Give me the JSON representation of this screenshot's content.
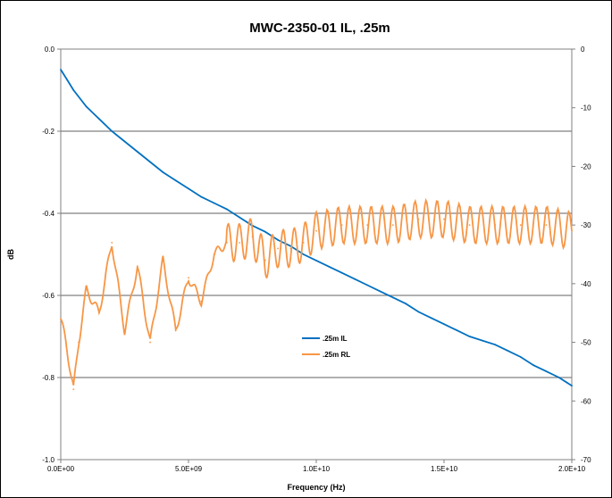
{
  "chart_data": {
    "type": "line",
    "title": "MWC-2350-01 IL, .25m",
    "xlabel": "Frequency (Hz)",
    "ylabel": "dB",
    "y2label": "",
    "xlim": [
      0,
      20000000000
    ],
    "ylim": [
      -1.0,
      0.0
    ],
    "y2lim": [
      -70,
      0
    ],
    "x_ticks": [
      {
        "value": 0,
        "label": "0.0E+00"
      },
      {
        "value": 5000000000,
        "label": "5.0E+09"
      },
      {
        "value": 10000000000,
        "label": "1.0E+10"
      },
      {
        "value": 15000000000,
        "label": "1.5E+10"
      },
      {
        "value": 20000000000,
        "label": "2.0E+10"
      }
    ],
    "y_ticks": [
      {
        "value": 0.0,
        "label": "0.0"
      },
      {
        "value": -0.2,
        "label": "-0.2"
      },
      {
        "value": -0.4,
        "label": "-0.4"
      },
      {
        "value": -0.6,
        "label": "-0.6"
      },
      {
        "value": -0.8,
        "label": "-0.8"
      },
      {
        "value": -1.0,
        "label": "-1.0"
      }
    ],
    "y2_ticks": [
      {
        "value": 0,
        "label": "0"
      },
      {
        "value": -10,
        "label": "-10"
      },
      {
        "value": -20,
        "label": "-20"
      },
      {
        "value": -30,
        "label": "-30"
      },
      {
        "value": -40,
        "label": "-40"
      },
      {
        "value": -50,
        "label": "-50"
      },
      {
        "value": -60,
        "label": "-60"
      },
      {
        "value": -70,
        "label": "-70"
      }
    ],
    "gridlines_y": [
      -0.2,
      -0.4,
      -0.6,
      -0.8
    ],
    "grid": "horizontal",
    "legend_position": "center",
    "series": [
      {
        "name": ".25m IL",
        "axis": "left",
        "color": "#0070C0",
        "x": [
          0,
          250000000,
          500000000,
          1000000000,
          1500000000,
          2000000000,
          2500000000,
          3000000000,
          3500000000,
          4000000000,
          4500000000,
          5000000000,
          5500000000,
          6000000000,
          6500000000,
          7000000000,
          7500000000,
          8000000000,
          8500000000,
          9000000000,
          9500000000,
          10000000000,
          10500000000,
          11000000000,
          11500000000,
          12000000000,
          12500000000,
          13000000000,
          13500000000,
          14000000000,
          14500000000,
          15000000000,
          15500000000,
          16000000000,
          16500000000,
          17000000000,
          17500000000,
          18000000000,
          18500000000,
          19000000000,
          19500000000,
          20000000000
        ],
        "y": [
          -0.05,
          -0.075,
          -0.1,
          -0.14,
          -0.17,
          -0.2,
          -0.225,
          -0.25,
          -0.275,
          -0.3,
          -0.32,
          -0.34,
          -0.36,
          -0.375,
          -0.39,
          -0.41,
          -0.43,
          -0.445,
          -0.465,
          -0.48,
          -0.5,
          -0.515,
          -0.53,
          -0.545,
          -0.56,
          -0.575,
          -0.59,
          -0.605,
          -0.62,
          -0.64,
          -0.655,
          -0.67,
          -0.685,
          -0.7,
          -0.71,
          -0.72,
          -0.735,
          -0.75,
          -0.77,
          -0.785,
          -0.8,
          -0.82
        ]
      },
      {
        "name": ".25m RL",
        "axis": "right",
        "color": "#F79646",
        "x": [
          0,
          200000000,
          500000000,
          700000000,
          1000000000,
          1500000000,
          2000000000,
          2500000000,
          3000000000,
          3500000000,
          4000000000,
          4500000000,
          5000000000,
          5500000000,
          6000000000,
          6500000000,
          7000000000,
          7500000000,
          8000000000,
          8500000000,
          9000000000,
          9500000000,
          10000000000,
          11000000000,
          12000000000,
          13000000000,
          14000000000,
          15000000000,
          16000000000,
          17000000000,
          18000000000,
          19000000000,
          20000000000
        ],
        "y": [
          -46,
          -50,
          -58,
          -50,
          -41,
          -45,
          -33,
          -48,
          -37,
          -50,
          -36,
          -48,
          -39,
          -43,
          -35,
          -33,
          -33,
          -32,
          -36,
          -34,
          -34,
          -33,
          -31,
          -30,
          -30,
          -30,
          -29,
          -29,
          -30,
          -30,
          -30,
          -30,
          -31
        ],
        "oscillating": true
      }
    ]
  }
}
